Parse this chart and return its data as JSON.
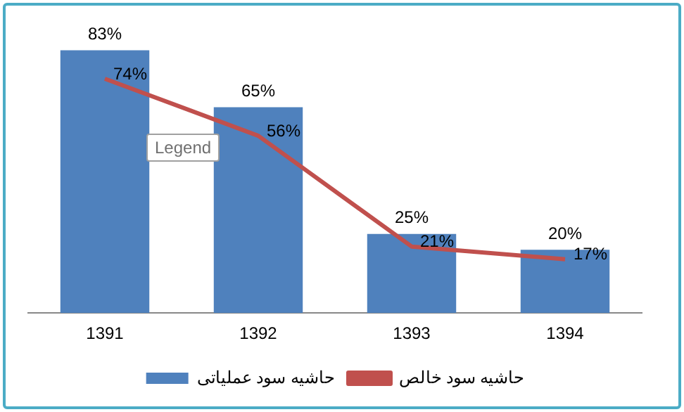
{
  "chart_data": {
    "type": "bar",
    "categories": [
      "1391",
      "1392",
      "1393",
      "1394"
    ],
    "series": [
      {
        "name": "حاشیه سود عملیاتی",
        "color": "#4f81bd",
        "values": [
          83,
          65,
          25,
          20
        ],
        "value_labels": [
          "83%",
          "65%",
          "25%",
          "20%"
        ]
      },
      {
        "name": "حاشیه سود خالص",
        "type": "line",
        "color": "#c0504d",
        "values": [
          74,
          56,
          21,
          17
        ],
        "value_labels": [
          "74%",
          "56%",
          "21%",
          "17%"
        ]
      }
    ],
    "tick_labels": "x",
    "grid": false,
    "legend": "bottom",
    "marker": "none",
    "line_style": "solid",
    "annotations": [
      "Legend"
    ]
  }
}
